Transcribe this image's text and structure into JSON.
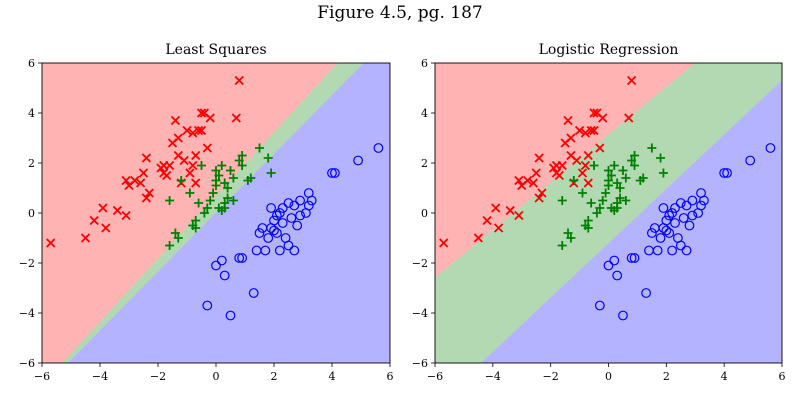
{
  "figure": {
    "suptitle": "Figure 4.5, pg. 187"
  },
  "colors": {
    "class1_region": "#ffb3b3",
    "class2_region": "#b3d9b3",
    "class3_region": "#b3b3ff",
    "class1_marker": "#ff0000",
    "class2_marker": "#008000",
    "class3_marker": "#0000ff"
  },
  "chart_data": [
    {
      "type": "scatter",
      "title": "Least Squares",
      "xlabel": "",
      "ylabel": "",
      "xlim": [
        -6,
        6
      ],
      "ylim": [
        -6,
        6
      ],
      "xticks": [
        -6,
        -4,
        -2,
        0,
        2,
        4,
        6
      ],
      "yticks": [
        -6,
        -4,
        -2,
        0,
        2,
        4,
        6
      ],
      "grid": false,
      "decision_regions": [
        {
          "class": "red",
          "polygon": [
            [
              -6,
              -6
            ],
            [
              -6,
              6
            ],
            [
              4.2,
              6
            ],
            [
              -5.3,
              -6
            ]
          ]
        },
        {
          "class": "green",
          "polygon": [
            [
              -5.3,
              -6
            ],
            [
              4.2,
              6
            ],
            [
              5.1,
              6
            ],
            [
              -5.1,
              -6
            ]
          ]
        },
        {
          "class": "blue",
          "polygon": [
            [
              -5.1,
              -6
            ],
            [
              5.1,
              6
            ],
            [
              6,
              6
            ],
            [
              6,
              -6
            ]
          ]
        }
      ],
      "series": [
        {
          "marker": "x",
          "class": "red",
          "points": [
            [
              -5.7,
              -1.2
            ],
            [
              -4.5,
              -1.0
            ],
            [
              -4.2,
              -0.3
            ],
            [
              -3.9,
              0.2
            ],
            [
              -3.8,
              -0.6
            ],
            [
              -3.4,
              0.1
            ],
            [
              -3.1,
              -0.1
            ],
            [
              -3.1,
              1.3
            ],
            [
              -3.0,
              1.1
            ],
            [
              -2.8,
              1.3
            ],
            [
              -2.6,
              1.2
            ],
            [
              -2.5,
              1.6
            ],
            [
              -2.4,
              0.6
            ],
            [
              -2.4,
              2.2
            ],
            [
              -2.3,
              0.8
            ],
            [
              -1.9,
              1.8
            ],
            [
              -1.8,
              1.6
            ],
            [
              -1.8,
              1.9
            ],
            [
              -1.7,
              1.5
            ],
            [
              -1.6,
              1.9
            ],
            [
              -1.5,
              2.8
            ],
            [
              -1.3,
              2.3
            ],
            [
              -1.3,
              3.0
            ],
            [
              -1.4,
              3.7
            ],
            [
              -1.2,
              1.2
            ],
            [
              -1.1,
              2.1
            ],
            [
              -1.0,
              3.3
            ],
            [
              -0.9,
              1.6
            ],
            [
              -0.8,
              1.9
            ],
            [
              -0.7,
              2.3
            ],
            [
              -0.8,
              3.2
            ],
            [
              -0.6,
              3.3
            ],
            [
              -0.5,
              3.3
            ],
            [
              -0.5,
              4.0
            ],
            [
              -0.4,
              4.0
            ],
            [
              -0.3,
              2.6
            ],
            [
              -0.2,
              3.8
            ],
            [
              0.8,
              5.3
            ],
            [
              0.7,
              3.8
            ],
            [
              -0.7,
              1.2
            ]
          ]
        },
        {
          "marker": "+",
          "class": "green",
          "points": [
            [
              -1.6,
              -1.3
            ],
            [
              -1.4,
              -0.8
            ],
            [
              -1.3,
              -1.0
            ],
            [
              -1.2,
              1.3
            ],
            [
              -0.9,
              0.8
            ],
            [
              -0.8,
              -0.5
            ],
            [
              -0.7,
              -0.6
            ],
            [
              -0.6,
              0.4
            ],
            [
              -0.4,
              0.0
            ],
            [
              -0.3,
              0.2
            ],
            [
              -0.2,
              0.5
            ],
            [
              -0.1,
              0.8
            ],
            [
              0.0,
              1.1
            ],
            [
              0.0,
              1.3
            ],
            [
              0.1,
              1.5
            ],
            [
              0.0,
              1.7
            ],
            [
              0.2,
              0.1
            ],
            [
              0.3,
              0.2
            ],
            [
              0.3,
              0.4
            ],
            [
              0.3,
              1.2
            ],
            [
              0.4,
              0.6
            ],
            [
              0.4,
              1.0
            ],
            [
              0.2,
              1.9
            ],
            [
              0.5,
              1.7
            ],
            [
              0.6,
              0.5
            ],
            [
              0.6,
              1.4
            ],
            [
              0.8,
              2.1
            ],
            [
              0.9,
              2.3
            ],
            [
              0.9,
              1.9
            ],
            [
              1.1,
              1.3
            ],
            [
              1.2,
              1.4
            ],
            [
              1.5,
              2.6
            ],
            [
              1.8,
              2.2
            ],
            [
              1.9,
              1.6
            ],
            [
              -1.6,
              0.5
            ],
            [
              -0.7,
              -0.3
            ],
            [
              0.1,
              0.2
            ],
            [
              -0.5,
              1.9
            ]
          ]
        },
        {
          "marker": "o",
          "class": "blue",
          "points": [
            [
              -0.3,
              -3.7
            ],
            [
              0.0,
              -2.1
            ],
            [
              0.2,
              -1.9
            ],
            [
              0.3,
              -2.5
            ],
            [
              0.5,
              -4.1
            ],
            [
              0.8,
              -1.8
            ],
            [
              0.9,
              -1.8
            ],
            [
              1.3,
              -3.2
            ],
            [
              1.4,
              -1.5
            ],
            [
              1.5,
              -0.8
            ],
            [
              1.6,
              -0.6
            ],
            [
              1.7,
              -1.5
            ],
            [
              1.8,
              -1.0
            ],
            [
              1.9,
              -0.6
            ],
            [
              2.0,
              -0.3
            ],
            [
              2.0,
              -0.7
            ],
            [
              2.1,
              -0.8
            ],
            [
              2.1,
              -0.1
            ],
            [
              2.2,
              -1.5
            ],
            [
              2.3,
              -0.4
            ],
            [
              2.3,
              0.2
            ],
            [
              2.4,
              -1.0
            ],
            [
              2.5,
              0.4
            ],
            [
              2.5,
              -1.3
            ],
            [
              2.6,
              -0.2
            ],
            [
              2.7,
              0.3
            ],
            [
              2.7,
              -1.5
            ],
            [
              2.8,
              -0.5
            ],
            [
              2.9,
              0.5
            ],
            [
              2.9,
              -0.1
            ],
            [
              3.1,
              0.0
            ],
            [
              3.2,
              0.8
            ],
            [
              3.3,
              0.5
            ],
            [
              4.0,
              1.6
            ],
            [
              4.1,
              1.6
            ],
            [
              4.9,
              2.1
            ],
            [
              5.6,
              2.6
            ],
            [
              3.2,
              0.3
            ],
            [
              2.2,
              0.0
            ],
            [
              1.9,
              0.2
            ]
          ]
        }
      ]
    },
    {
      "type": "scatter",
      "title": "Logistic Regression",
      "xlabel": "",
      "ylabel": "",
      "xlim": [
        -6,
        6
      ],
      "ylim": [
        -6,
        6
      ],
      "xticks": [
        -6,
        -4,
        -2,
        0,
        2,
        4,
        6
      ],
      "yticks": [
        -6,
        -4,
        -2,
        0,
        2,
        4,
        6
      ],
      "grid": false,
      "decision_regions": [
        {
          "class": "red",
          "polygon": [
            [
              -6,
              -2.6
            ],
            [
              -6,
              6
            ],
            [
              3.0,
              6
            ]
          ]
        },
        {
          "class": "green",
          "polygon": [
            [
              -6,
              -6
            ],
            [
              -6,
              -2.6
            ],
            [
              3.0,
              6
            ],
            [
              6,
              6
            ],
            [
              6,
              5.3
            ],
            [
              -4.4,
              -6
            ]
          ]
        },
        {
          "class": "blue",
          "polygon": [
            [
              -4.4,
              -6
            ],
            [
              6,
              5.3
            ],
            [
              6,
              -6
            ]
          ]
        }
      ],
      "series": [
        {
          "marker": "x",
          "class": "red",
          "points": [
            [
              -5.7,
              -1.2
            ],
            [
              -4.5,
              -1.0
            ],
            [
              -4.2,
              -0.3
            ],
            [
              -3.9,
              0.2
            ],
            [
              -3.8,
              -0.6
            ],
            [
              -3.4,
              0.1
            ],
            [
              -3.1,
              -0.1
            ],
            [
              -3.1,
              1.3
            ],
            [
              -3.0,
              1.1
            ],
            [
              -2.8,
              1.3
            ],
            [
              -2.6,
              1.2
            ],
            [
              -2.5,
              1.6
            ],
            [
              -2.4,
              0.6
            ],
            [
              -2.4,
              2.2
            ],
            [
              -2.3,
              0.8
            ],
            [
              -1.9,
              1.8
            ],
            [
              -1.8,
              1.6
            ],
            [
              -1.8,
              1.9
            ],
            [
              -1.7,
              1.5
            ],
            [
              -1.6,
              1.9
            ],
            [
              -1.5,
              2.8
            ],
            [
              -1.3,
              2.3
            ],
            [
              -1.3,
              3.0
            ],
            [
              -1.4,
              3.7
            ],
            [
              -1.2,
              1.2
            ],
            [
              -1.1,
              2.1
            ],
            [
              -1.0,
              3.3
            ],
            [
              -0.9,
              1.6
            ],
            [
              -0.8,
              1.9
            ],
            [
              -0.7,
              2.3
            ],
            [
              -0.8,
              3.2
            ],
            [
              -0.6,
              3.3
            ],
            [
              -0.5,
              3.3
            ],
            [
              -0.5,
              4.0
            ],
            [
              -0.4,
              4.0
            ],
            [
              -0.3,
              2.6
            ],
            [
              -0.2,
              3.8
            ],
            [
              0.8,
              5.3
            ],
            [
              0.7,
              3.8
            ],
            [
              -0.7,
              1.2
            ]
          ]
        },
        {
          "marker": "+",
          "class": "green",
          "points": [
            [
              -1.6,
              -1.3
            ],
            [
              -1.4,
              -0.8
            ],
            [
              -1.3,
              -1.0
            ],
            [
              -1.2,
              1.3
            ],
            [
              -0.9,
              0.8
            ],
            [
              -0.8,
              -0.5
            ],
            [
              -0.7,
              -0.6
            ],
            [
              -0.6,
              0.4
            ],
            [
              -0.4,
              0.0
            ],
            [
              -0.3,
              0.2
            ],
            [
              -0.2,
              0.5
            ],
            [
              -0.1,
              0.8
            ],
            [
              0.0,
              1.1
            ],
            [
              0.0,
              1.3
            ],
            [
              0.1,
              1.5
            ],
            [
              0.0,
              1.7
            ],
            [
              0.2,
              0.1
            ],
            [
              0.3,
              0.2
            ],
            [
              0.3,
              0.4
            ],
            [
              0.3,
              1.2
            ],
            [
              0.4,
              0.6
            ],
            [
              0.4,
              1.0
            ],
            [
              0.2,
              1.9
            ],
            [
              0.5,
              1.7
            ],
            [
              0.6,
              0.5
            ],
            [
              0.6,
              1.4
            ],
            [
              0.8,
              2.1
            ],
            [
              0.9,
              2.3
            ],
            [
              0.9,
              1.9
            ],
            [
              1.1,
              1.3
            ],
            [
              1.2,
              1.4
            ],
            [
              1.5,
              2.6
            ],
            [
              1.8,
              2.2
            ],
            [
              1.9,
              1.6
            ],
            [
              -1.6,
              0.5
            ],
            [
              -0.7,
              -0.3
            ],
            [
              0.1,
              0.2
            ],
            [
              -0.5,
              1.9
            ]
          ]
        },
        {
          "marker": "o",
          "class": "blue",
          "points": [
            [
              -0.3,
              -3.7
            ],
            [
              0.0,
              -2.1
            ],
            [
              0.2,
              -1.9
            ],
            [
              0.3,
              -2.5
            ],
            [
              0.5,
              -4.1
            ],
            [
              0.8,
              -1.8
            ],
            [
              0.9,
              -1.8
            ],
            [
              1.3,
              -3.2
            ],
            [
              1.4,
              -1.5
            ],
            [
              1.5,
              -0.8
            ],
            [
              1.6,
              -0.6
            ],
            [
              1.7,
              -1.5
            ],
            [
              1.8,
              -1.0
            ],
            [
              1.9,
              -0.6
            ],
            [
              2.0,
              -0.3
            ],
            [
              2.0,
              -0.7
            ],
            [
              2.1,
              -0.8
            ],
            [
              2.1,
              -0.1
            ],
            [
              2.2,
              -1.5
            ],
            [
              2.3,
              -0.4
            ],
            [
              2.3,
              0.2
            ],
            [
              2.4,
              -1.0
            ],
            [
              2.5,
              0.4
            ],
            [
              2.5,
              -1.3
            ],
            [
              2.6,
              -0.2
            ],
            [
              2.7,
              0.3
            ],
            [
              2.7,
              -1.5
            ],
            [
              2.8,
              -0.5
            ],
            [
              2.9,
              0.5
            ],
            [
              2.9,
              -0.1
            ],
            [
              3.1,
              0.0
            ],
            [
              3.2,
              0.8
            ],
            [
              3.3,
              0.5
            ],
            [
              4.0,
              1.6
            ],
            [
              4.1,
              1.6
            ],
            [
              4.9,
              2.1
            ],
            [
              5.6,
              2.6
            ],
            [
              3.2,
              0.3
            ],
            [
              2.2,
              0.0
            ],
            [
              1.9,
              0.2
            ]
          ]
        }
      ]
    }
  ]
}
